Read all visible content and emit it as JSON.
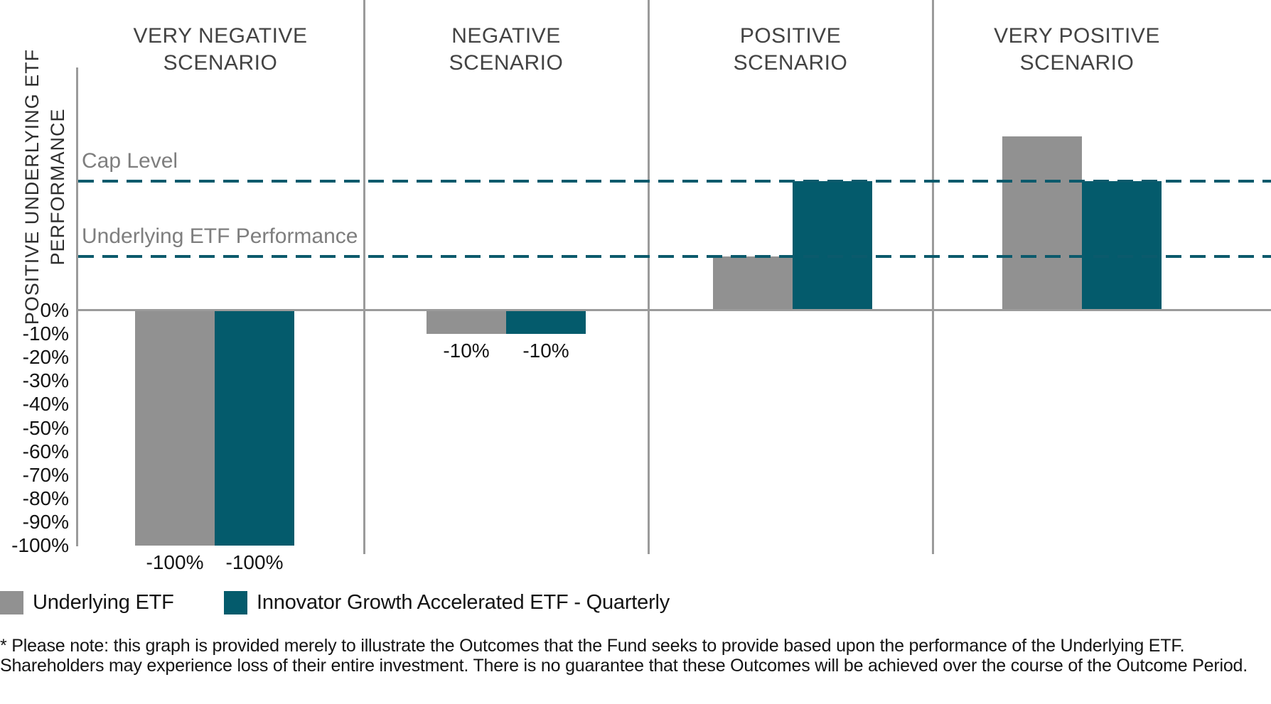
{
  "chart_data": {
    "type": "bar",
    "title": "",
    "categories": [
      "VERY NEGATIVE SCENARIO",
      "NEGATIVE SCENARIO",
      "POSITIVE SCENARIO",
      "VERY POSITIVE SCENARIO"
    ],
    "series": [
      {
        "name": "Underlying ETF",
        "color": "#919191",
        "values": [
          -100,
          -10,
          23,
          74
        ],
        "bar_labels": [
          "-100%",
          "-10%",
          "",
          ""
        ]
      },
      {
        "name": "Innovator Growth Accelerated ETF - Quarterly",
        "color": "#045b6c",
        "values": [
          -100,
          -10,
          55,
          55
        ],
        "bar_labels": [
          "-100%",
          "-10%",
          "",
          ""
        ]
      }
    ],
    "reference_lines": [
      {
        "label": "Cap Level",
        "value": 55,
        "color": "#0b5a6c",
        "style": "dashed"
      },
      {
        "label": "Underlying ETF Performance",
        "value": 23,
        "color": "#0b5a6c",
        "style": "dashed"
      }
    ],
    "ylabel": "POSITIVE UNDERLYING ETF PERFORMANCE",
    "yticks": [
      "0%",
      "-10%",
      "-20%",
      "-30%",
      "-40%",
      "-50%",
      "-60%",
      "-70%",
      "-80%",
      "-90%",
      "-100%"
    ],
    "ytick_values": [
      0,
      -10,
      -20,
      -30,
      -40,
      -50,
      -60,
      -70,
      -80,
      -90,
      -100
    ],
    "ylim": [
      -100,
      103
    ],
    "grid": false,
    "legend_position": "bottom-left",
    "axis_color": "#9b9b9b",
    "header_color": "#434343",
    "reference_label_color": "#7e7e7e"
  },
  "footnote": "* Please note: this graph is provided merely to illustrate the Outcomes that the Fund seeks to provide based upon the performance of the Underlying ETF. Shareholders may experience loss of their entire investment. There is no guarantee that these Outcomes will be achieved over the course of the Outcome Period."
}
